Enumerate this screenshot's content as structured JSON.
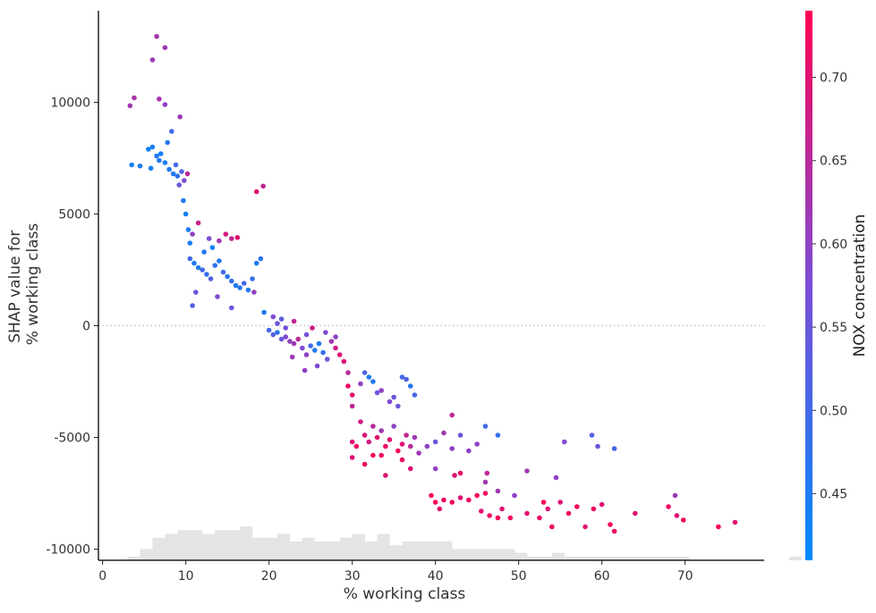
{
  "chart_data": {
    "type": "scatter",
    "title": "",
    "xlabel": "% working class",
    "ylabel": [
      "SHAP value for",
      "% working class"
    ],
    "xlim": [
      -0.5,
      79.5
    ],
    "ylim": [
      -10500,
      14100
    ],
    "xticks": [
      0,
      10,
      20,
      30,
      40,
      50,
      60,
      70
    ],
    "yticks": [
      -10000,
      -5000,
      0,
      5000,
      10000
    ],
    "ytick_labels": [
      "-10000",
      "-5000",
      "0",
      "5000",
      "10000"
    ],
    "zero_line": true,
    "grid": false,
    "legend": "none",
    "colorbar": {
      "label": "NOX concentration",
      "range": [
        0.41,
        0.74
      ],
      "ticks": [
        0.45,
        0.5,
        0.55,
        0.6,
        0.65,
        0.7
      ],
      "tick_labels": [
        "0.45",
        "0.50",
        "0.55",
        "0.60",
        "0.65",
        "0.70"
      ],
      "colors": [
        "#008afb",
        "#ff0052"
      ]
    },
    "histogram": {
      "bin_width": 1.5,
      "bin_start": 3,
      "counts": [
        1,
        3,
        6,
        7,
        8,
        8,
        7,
        8,
        8,
        9,
        6,
        6,
        7,
        5,
        6,
        5,
        5,
        6,
        7,
        5,
        7,
        4,
        5,
        5,
        5,
        5,
        3,
        3,
        3,
        3,
        3,
        2,
        1,
        1,
        2,
        1,
        1,
        1,
        1,
        1,
        1,
        1,
        1,
        1,
        1,
        0,
        0,
        0,
        0,
        0,
        0,
        0,
        0,
        1,
        0
      ]
    },
    "points": [
      {
        "x": 3.5,
        "y": 7200,
        "c": 0.44
      },
      {
        "x": 4.5,
        "y": 7150,
        "c": 0.45
      },
      {
        "x": 5.5,
        "y": 7900,
        "c": 0.43
      },
      {
        "x": 6.0,
        "y": 8000,
        "c": 0.44
      },
      {
        "x": 6.5,
        "y": 7600,
        "c": 0.45
      },
      {
        "x": 7.0,
        "y": 7700,
        "c": 0.44
      },
      {
        "x": 7.5,
        "y": 7300,
        "c": 0.45
      },
      {
        "x": 8.0,
        "y": 7000,
        "c": 0.45
      },
      {
        "x": 8.5,
        "y": 6800,
        "c": 0.46
      },
      {
        "x": 9.0,
        "y": 6700,
        "c": 0.47
      },
      {
        "x": 5.8,
        "y": 7050,
        "c": 0.44
      },
      {
        "x": 6.8,
        "y": 7400,
        "c": 0.45
      },
      {
        "x": 7.8,
        "y": 8200,
        "c": 0.46
      },
      {
        "x": 8.3,
        "y": 8700,
        "c": 0.5
      },
      {
        "x": 8.8,
        "y": 7200,
        "c": 0.5
      },
      {
        "x": 9.5,
        "y": 6900,
        "c": 0.52
      },
      {
        "x": 9.2,
        "y": 6300,
        "c": 0.55
      },
      {
        "x": 10.2,
        "y": 6800,
        "c": 0.65
      },
      {
        "x": 9.8,
        "y": 6500,
        "c": 0.58
      },
      {
        "x": 9.7,
        "y": 5600,
        "c": 0.45
      },
      {
        "x": 10.0,
        "y": 5000,
        "c": 0.44
      },
      {
        "x": 10.3,
        "y": 4300,
        "c": 0.45
      },
      {
        "x": 10.5,
        "y": 3700,
        "c": 0.45
      },
      {
        "x": 3.3,
        "y": 9850,
        "c": 0.62
      },
      {
        "x": 3.8,
        "y": 10200,
        "c": 0.63
      },
      {
        "x": 6.8,
        "y": 10150,
        "c": 0.63
      },
      {
        "x": 7.5,
        "y": 9900,
        "c": 0.6
      },
      {
        "x": 9.3,
        "y": 9350,
        "c": 0.62
      },
      {
        "x": 6.0,
        "y": 11900,
        "c": 0.62
      },
      {
        "x": 6.5,
        "y": 12950,
        "c": 0.63
      },
      {
        "x": 7.5,
        "y": 12450,
        "c": 0.62
      },
      {
        "x": 11.5,
        "y": 4600,
        "c": 0.67
      },
      {
        "x": 10.8,
        "y": 4100,
        "c": 0.6
      },
      {
        "x": 10.5,
        "y": 3000,
        "c": 0.5
      },
      {
        "x": 11.0,
        "y": 2800,
        "c": 0.45
      },
      {
        "x": 11.5,
        "y": 2600,
        "c": 0.46
      },
      {
        "x": 12.0,
        "y": 2500,
        "c": 0.5
      },
      {
        "x": 12.5,
        "y": 2300,
        "c": 0.48
      },
      {
        "x": 13.0,
        "y": 2100,
        "c": 0.52
      },
      {
        "x": 13.5,
        "y": 2700,
        "c": 0.47
      },
      {
        "x": 14.0,
        "y": 2900,
        "c": 0.45
      },
      {
        "x": 14.5,
        "y": 2400,
        "c": 0.5
      },
      {
        "x": 15.0,
        "y": 2200,
        "c": 0.46
      },
      {
        "x": 15.5,
        "y": 2000,
        "c": 0.48
      },
      {
        "x": 16.0,
        "y": 1800,
        "c": 0.45
      },
      {
        "x": 16.5,
        "y": 1700,
        "c": 0.47
      },
      {
        "x": 17.0,
        "y": 1900,
        "c": 0.5
      },
      {
        "x": 17.5,
        "y": 1600,
        "c": 0.46
      },
      {
        "x": 18.0,
        "y": 2100,
        "c": 0.48
      },
      {
        "x": 18.5,
        "y": 2800,
        "c": 0.45
      },
      {
        "x": 19.0,
        "y": 3000,
        "c": 0.47
      },
      {
        "x": 12.2,
        "y": 3300,
        "c": 0.45
      },
      {
        "x": 13.2,
        "y": 3500,
        "c": 0.44
      },
      {
        "x": 11.2,
        "y": 1500,
        "c": 0.55
      },
      {
        "x": 10.8,
        "y": 900,
        "c": 0.52
      },
      {
        "x": 13.8,
        "y": 1300,
        "c": 0.58
      },
      {
        "x": 15.5,
        "y": 800,
        "c": 0.55
      },
      {
        "x": 14.8,
        "y": 4100,
        "c": 0.68
      },
      {
        "x": 15.5,
        "y": 3900,
        "c": 0.66
      },
      {
        "x": 16.2,
        "y": 3950,
        "c": 0.7
      },
      {
        "x": 14.0,
        "y": 3800,
        "c": 0.62
      },
      {
        "x": 12.8,
        "y": 3900,
        "c": 0.58
      },
      {
        "x": 18.5,
        "y": 6000,
        "c": 0.7
      },
      {
        "x": 19.3,
        "y": 6250,
        "c": 0.66
      },
      {
        "x": 18.2,
        "y": 1500,
        "c": 0.6
      },
      {
        "x": 19.4,
        "y": 600,
        "c": 0.45
      },
      {
        "x": 20.0,
        "y": -200,
        "c": 0.5
      },
      {
        "x": 20.5,
        "y": -400,
        "c": 0.52
      },
      {
        "x": 21.0,
        "y": -300,
        "c": 0.48
      },
      {
        "x": 21.5,
        "y": -600,
        "c": 0.55
      },
      {
        "x": 22.0,
        "y": -500,
        "c": 0.58
      },
      {
        "x": 22.5,
        "y": -700,
        "c": 0.6
      },
      {
        "x": 23.0,
        "y": -800,
        "c": 0.62
      },
      {
        "x": 23.5,
        "y": -600,
        "c": 0.65
      },
      {
        "x": 24.0,
        "y": -1000,
        "c": 0.58
      },
      {
        "x": 24.5,
        "y": -1300,
        "c": 0.6
      },
      {
        "x": 25.0,
        "y": -900,
        "c": 0.5
      },
      {
        "x": 25.5,
        "y": -1100,
        "c": 0.46
      },
      {
        "x": 26.0,
        "y": -800,
        "c": 0.45
      },
      {
        "x": 26.5,
        "y": -1200,
        "c": 0.48
      },
      {
        "x": 27.0,
        "y": -1500,
        "c": 0.55
      },
      {
        "x": 27.5,
        "y": -700,
        "c": 0.62
      },
      {
        "x": 28.0,
        "y": -1000,
        "c": 0.68
      },
      {
        "x": 28.5,
        "y": -1300,
        "c": 0.7
      },
      {
        "x": 23.0,
        "y": 200,
        "c": 0.66
      },
      {
        "x": 25.2,
        "y": -100,
        "c": 0.68
      },
      {
        "x": 22.8,
        "y": -1400,
        "c": 0.62
      },
      {
        "x": 24.3,
        "y": -2000,
        "c": 0.6
      },
      {
        "x": 25.8,
        "y": -1800,
        "c": 0.58
      },
      {
        "x": 29.0,
        "y": -1600,
        "c": 0.7
      },
      {
        "x": 29.5,
        "y": -2100,
        "c": 0.65
      },
      {
        "x": 29.5,
        "y": -2700,
        "c": 0.72
      },
      {
        "x": 30.0,
        "y": -3100,
        "c": 0.7
      },
      {
        "x": 31.0,
        "y": -2600,
        "c": 0.6
      },
      {
        "x": 31.5,
        "y": -2100,
        "c": 0.52
      },
      {
        "x": 32.0,
        "y": -2300,
        "c": 0.45
      },
      {
        "x": 32.5,
        "y": -2500,
        "c": 0.46
      },
      {
        "x": 33.0,
        "y": -3000,
        "c": 0.55
      },
      {
        "x": 33.5,
        "y": -2900,
        "c": 0.6
      },
      {
        "x": 34.5,
        "y": -3400,
        "c": 0.58
      },
      {
        "x": 35.0,
        "y": -3200,
        "c": 0.55
      },
      {
        "x": 35.5,
        "y": -3600,
        "c": 0.56
      },
      {
        "x": 36.0,
        "y": -2300,
        "c": 0.5
      },
      {
        "x": 36.5,
        "y": -2400,
        "c": 0.52
      },
      {
        "x": 37.0,
        "y": -2700,
        "c": 0.46
      },
      {
        "x": 37.5,
        "y": -3100,
        "c": 0.5
      },
      {
        "x": 30.0,
        "y": -3600,
        "c": 0.66
      },
      {
        "x": 31.0,
        "y": -4300,
        "c": 0.68
      },
      {
        "x": 30.0,
        "y": -5200,
        "c": 0.7
      },
      {
        "x": 30.5,
        "y": -5400,
        "c": 0.72
      },
      {
        "x": 31.5,
        "y": -4900,
        "c": 0.7
      },
      {
        "x": 32.0,
        "y": -5200,
        "c": 0.68
      },
      {
        "x": 32.5,
        "y": -4500,
        "c": 0.65
      },
      {
        "x": 33.0,
        "y": -5000,
        "c": 0.7
      },
      {
        "x": 33.5,
        "y": -4700,
        "c": 0.62
      },
      {
        "x": 34.0,
        "y": -5400,
        "c": 0.72
      },
      {
        "x": 34.5,
        "y": -5100,
        "c": 0.7
      },
      {
        "x": 35.0,
        "y": -4500,
        "c": 0.6
      },
      {
        "x": 35.5,
        "y": -5600,
        "c": 0.73
      },
      {
        "x": 36.0,
        "y": -5300,
        "c": 0.7
      },
      {
        "x": 36.5,
        "y": -4900,
        "c": 0.66
      },
      {
        "x": 37.0,
        "y": -5400,
        "c": 0.65
      },
      {
        "x": 37.5,
        "y": -5000,
        "c": 0.62
      },
      {
        "x": 30.0,
        "y": -5900,
        "c": 0.7
      },
      {
        "x": 31.5,
        "y": -6200,
        "c": 0.72
      },
      {
        "x": 32.5,
        "y": -5800,
        "c": 0.73
      },
      {
        "x": 33.5,
        "y": -5800,
        "c": 0.72
      },
      {
        "x": 34.0,
        "y": -6700,
        "c": 0.7
      },
      {
        "x": 36.0,
        "y": -6000,
        "c": 0.72
      },
      {
        "x": 37.0,
        "y": -6400,
        "c": 0.7
      },
      {
        "x": 38.0,
        "y": -5700,
        "c": 0.62
      },
      {
        "x": 39.0,
        "y": -5400,
        "c": 0.6
      },
      {
        "x": 40.0,
        "y": -5200,
        "c": 0.55
      },
      {
        "x": 41.0,
        "y": -4800,
        "c": 0.62
      },
      {
        "x": 42.0,
        "y": -5500,
        "c": 0.6
      },
      {
        "x": 43.0,
        "y": -4900,
        "c": 0.55
      },
      {
        "x": 44.0,
        "y": -5600,
        "c": 0.6
      },
      {
        "x": 42.0,
        "y": -4000,
        "c": 0.66
      },
      {
        "x": 46.0,
        "y": -4500,
        "c": 0.5
      },
      {
        "x": 47.5,
        "y": -4900,
        "c": 0.48
      },
      {
        "x": 45.0,
        "y": -5300,
        "c": 0.6
      },
      {
        "x": 40.0,
        "y": -6400,
        "c": 0.6
      },
      {
        "x": 42.3,
        "y": -6700,
        "c": 0.7
      },
      {
        "x": 43.0,
        "y": -6600,
        "c": 0.72
      },
      {
        "x": 46.0,
        "y": -7000,
        "c": 0.62
      },
      {
        "x": 47.5,
        "y": -7400,
        "c": 0.62
      },
      {
        "x": 46.2,
        "y": -6600,
        "c": 0.66
      },
      {
        "x": 39.5,
        "y": -7600,
        "c": 0.72
      },
      {
        "x": 40.0,
        "y": -7900,
        "c": 0.73
      },
      {
        "x": 40.5,
        "y": -8200,
        "c": 0.7
      },
      {
        "x": 41.0,
        "y": -7800,
        "c": 0.72
      },
      {
        "x": 42.0,
        "y": -7900,
        "c": 0.73
      },
      {
        "x": 43.0,
        "y": -7700,
        "c": 0.7
      },
      {
        "x": 44.0,
        "y": -7800,
        "c": 0.72
      },
      {
        "x": 45.0,
        "y": -7600,
        "c": 0.73
      },
      {
        "x": 46.0,
        "y": -7500,
        "c": 0.72
      },
      {
        "x": 45.5,
        "y": -8300,
        "c": 0.7
      },
      {
        "x": 46.5,
        "y": -8500,
        "c": 0.72
      },
      {
        "x": 47.5,
        "y": -8600,
        "c": 0.73
      },
      {
        "x": 48.0,
        "y": -8200,
        "c": 0.7
      },
      {
        "x": 49.0,
        "y": -8600,
        "c": 0.72
      },
      {
        "x": 51.0,
        "y": -8400,
        "c": 0.7
      },
      {
        "x": 52.5,
        "y": -8600,
        "c": 0.72
      },
      {
        "x": 53.0,
        "y": -7900,
        "c": 0.73
      },
      {
        "x": 53.5,
        "y": -8200,
        "c": 0.7
      },
      {
        "x": 54.0,
        "y": -9000,
        "c": 0.72
      },
      {
        "x": 55.0,
        "y": -7900,
        "c": 0.7
      },
      {
        "x": 56.0,
        "y": -8400,
        "c": 0.72
      },
      {
        "x": 57.0,
        "y": -8100,
        "c": 0.73
      },
      {
        "x": 58.0,
        "y": -9000,
        "c": 0.7
      },
      {
        "x": 59.0,
        "y": -8200,
        "c": 0.72
      },
      {
        "x": 60.0,
        "y": -8000,
        "c": 0.7
      },
      {
        "x": 61.0,
        "y": -8900,
        "c": 0.73
      },
      {
        "x": 61.5,
        "y": -9200,
        "c": 0.72
      },
      {
        "x": 64.0,
        "y": -8400,
        "c": 0.7
      },
      {
        "x": 68.0,
        "y": -8100,
        "c": 0.72
      },
      {
        "x": 69.0,
        "y": -8500,
        "c": 0.7
      },
      {
        "x": 69.8,
        "y": -8700,
        "c": 0.72
      },
      {
        "x": 74.0,
        "y": -9000,
        "c": 0.73
      },
      {
        "x": 76.0,
        "y": -8800,
        "c": 0.7
      },
      {
        "x": 49.5,
        "y": -7600,
        "c": 0.6
      },
      {
        "x": 51.0,
        "y": -6500,
        "c": 0.62
      },
      {
        "x": 54.5,
        "y": -6800,
        "c": 0.6
      },
      {
        "x": 55.5,
        "y": -5200,
        "c": 0.58
      },
      {
        "x": 58.8,
        "y": -4900,
        "c": 0.52
      },
      {
        "x": 59.5,
        "y": -5400,
        "c": 0.55
      },
      {
        "x": 61.5,
        "y": -5500,
        "c": 0.5
      },
      {
        "x": 68.8,
        "y": -7600,
        "c": 0.62
      },
      {
        "x": 20.5,
        "y": 400,
        "c": 0.58
      },
      {
        "x": 21.0,
        "y": 100,
        "c": 0.56
      },
      {
        "x": 21.5,
        "y": 300,
        "c": 0.54
      },
      {
        "x": 22.0,
        "y": -100,
        "c": 0.56
      },
      {
        "x": 24.5,
        "y": -400,
        "c": 0.57
      },
      {
        "x": 26.8,
        "y": -300,
        "c": 0.58
      },
      {
        "x": 28.0,
        "y": -500,
        "c": 0.6
      }
    ]
  }
}
